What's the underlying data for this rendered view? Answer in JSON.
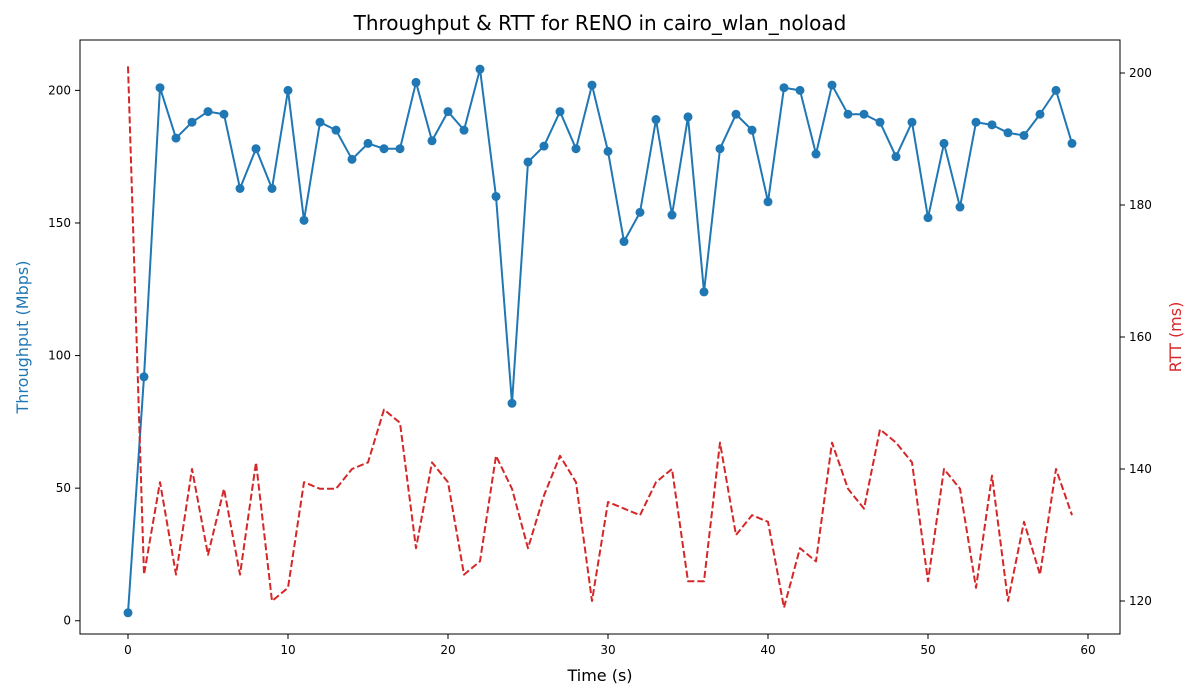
{
  "chart_data": {
    "type": "line",
    "title": "Throughput & RTT for RENO in cairo_wlan_noload",
    "xlabel": "Time (s)",
    "ylabel_left": "Throughput (Mbps)",
    "ylabel_right": "RTT (ms)",
    "xlim": [
      -3,
      62
    ],
    "ylim_left": [
      -5,
      219
    ],
    "ylim_right": [
      115,
      205
    ],
    "xticks": [
      0,
      10,
      20,
      30,
      40,
      50,
      60
    ],
    "yticks_left": [
      0,
      50,
      100,
      150,
      200
    ],
    "yticks_right": [
      120,
      140,
      160,
      180,
      200
    ],
    "grid": false,
    "x": [
      0,
      1,
      2,
      3,
      4,
      5,
      6,
      7,
      8,
      9,
      10,
      11,
      12,
      13,
      14,
      15,
      16,
      17,
      18,
      19,
      20,
      21,
      22,
      23,
      24,
      25,
      26,
      27,
      28,
      29,
      30,
      31,
      32,
      33,
      34,
      35,
      36,
      37,
      38,
      39,
      40,
      41,
      42,
      43,
      44,
      45,
      46,
      47,
      48,
      49,
      50,
      51,
      52,
      53,
      54,
      55,
      56,
      57,
      58,
      59
    ],
    "series": [
      {
        "name": "Throughput (Mbps)",
        "axis": "left",
        "color": "#1f77b4",
        "style": "solid",
        "marker": "circle",
        "values": [
          3,
          92,
          201,
          182,
          188,
          192,
          191,
          163,
          178,
          163,
          200,
          151,
          188,
          185,
          174,
          180,
          178,
          178,
          203,
          181,
          192,
          185,
          208,
          160,
          82,
          173,
          179,
          192,
          178,
          202,
          177,
          143,
          154,
          189,
          153,
          190,
          124,
          178,
          191,
          185,
          158,
          201,
          200,
          176,
          202,
          191,
          191,
          188,
          175,
          188,
          152,
          180,
          156,
          188,
          187,
          184,
          183,
          191,
          200,
          180
        ]
      },
      {
        "name": "RTT (ms)",
        "axis": "right",
        "color": "#d62728",
        "style": "dashed",
        "marker": "none",
        "values": [
          201,
          124,
          138,
          124,
          140,
          127,
          137,
          124,
          141,
          120,
          122,
          138,
          137,
          137,
          140,
          141,
          149,
          147,
          128,
          141,
          138,
          124,
          126,
          142,
          137,
          128,
          136,
          142,
          138,
          120,
          135,
          134,
          133,
          138,
          140,
          123,
          123,
          144,
          130,
          133,
          132,
          119,
          128,
          126,
          144,
          137,
          134,
          146,
          144,
          141,
          123,
          140,
          137,
          122,
          139,
          120,
          132,
          124,
          140,
          133
        ]
      }
    ]
  }
}
